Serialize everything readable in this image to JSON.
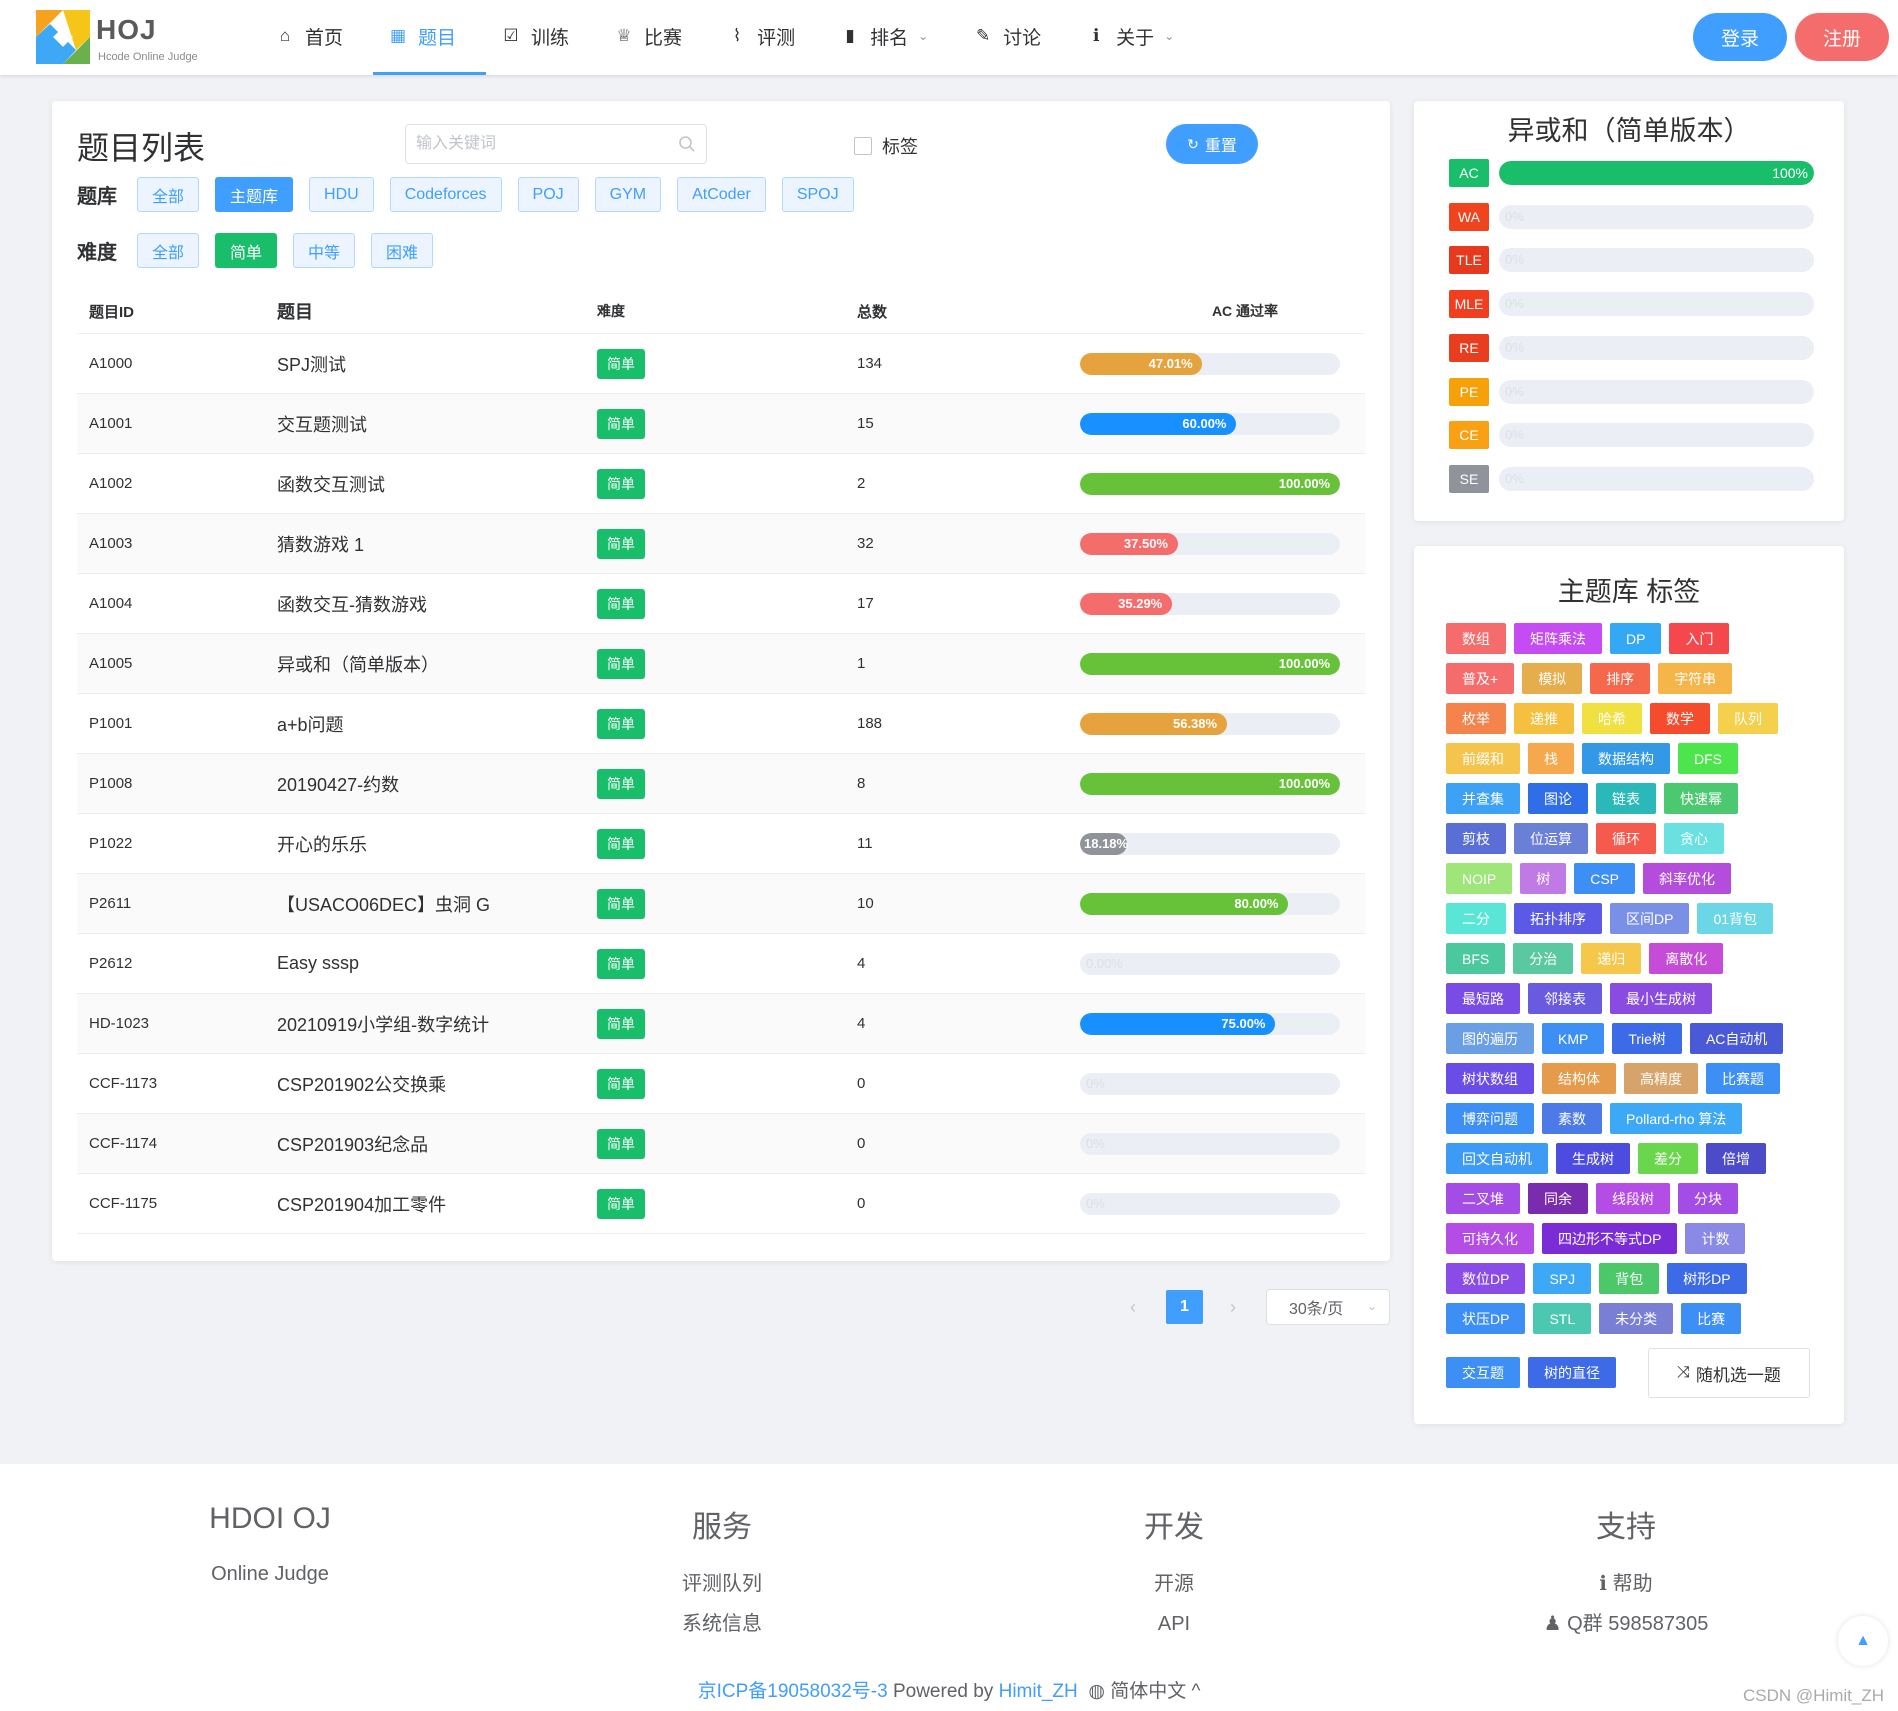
{
  "brand": {
    "name": "HOJ",
    "subtitle": "Hcode Online Judge"
  },
  "nav": [
    {
      "label": "首页",
      "icon": "home-icon",
      "glyph": "⌂",
      "active": false,
      "caret": false
    },
    {
      "label": "题目",
      "icon": "grid-icon",
      "glyph": "▦",
      "active": true,
      "caret": false
    },
    {
      "label": "训练",
      "icon": "clipboard-check-icon",
      "glyph": "☑",
      "active": false,
      "caret": false
    },
    {
      "label": "比赛",
      "icon": "trophy-icon",
      "glyph": "♕",
      "active": false,
      "caret": false
    },
    {
      "label": "评测",
      "icon": "chart-line-icon",
      "glyph": "⌇",
      "active": false,
      "caret": false
    },
    {
      "label": "排名",
      "icon": "bar-chart-icon",
      "glyph": "▮",
      "active": false,
      "caret": true
    },
    {
      "label": "讨论",
      "icon": "chat-icon",
      "glyph": "✎",
      "active": false,
      "caret": false
    },
    {
      "label": "关于",
      "icon": "info-icon",
      "glyph": "ℹ",
      "active": false,
      "caret": true
    }
  ],
  "auth": {
    "login": "登录",
    "register": "注册"
  },
  "problem_list": {
    "title": "题目列表",
    "search_placeholder": "输入关键词",
    "tag_checkbox": "标签",
    "reset": "重置",
    "bank_label": "题库",
    "banks": [
      {
        "label": "全部",
        "selected": false
      },
      {
        "label": "主题库",
        "selected": true
      },
      {
        "label": "HDU",
        "selected": false
      },
      {
        "label": "Codeforces",
        "selected": false
      },
      {
        "label": "POJ",
        "selected": false
      },
      {
        "label": "GYM",
        "selected": false
      },
      {
        "label": "AtCoder",
        "selected": false
      },
      {
        "label": "SPOJ",
        "selected": false
      }
    ],
    "difficulty_label": "难度",
    "difficulties": [
      {
        "label": "全部",
        "selected": false
      },
      {
        "label": "简单",
        "selected": true
      },
      {
        "label": "中等",
        "selected": false
      },
      {
        "label": "困难",
        "selected": false
      }
    ],
    "columns": [
      "题目ID",
      "题目",
      "难度",
      "总数",
      "AC 通过率"
    ],
    "rows": [
      {
        "id": "A1000",
        "title": "SPJ测试",
        "difficulty": "简单",
        "total": "134",
        "rate": 47.01,
        "rate_text": "47.01%",
        "color": "#e6a23c"
      },
      {
        "id": "A1001",
        "title": "交互题测试",
        "difficulty": "简单",
        "total": "15",
        "rate": 60.0,
        "rate_text": "60.00%",
        "color": "#1890ff"
      },
      {
        "id": "A1002",
        "title": "函数交互测试",
        "difficulty": "简单",
        "total": "2",
        "rate": 100.0,
        "rate_text": "100.00%",
        "color": "#67c23a"
      },
      {
        "id": "A1003",
        "title": "猜数游戏 1",
        "difficulty": "简单",
        "total": "32",
        "rate": 37.5,
        "rate_text": "37.50%",
        "color": "#f56c6c"
      },
      {
        "id": "A1004",
        "title": "函数交互-猜数游戏",
        "difficulty": "简单",
        "total": "17",
        "rate": 35.29,
        "rate_text": "35.29%",
        "color": "#f56c6c"
      },
      {
        "id": "A1005",
        "title": "异或和（简单版本）",
        "difficulty": "简单",
        "total": "1",
        "rate": 100.0,
        "rate_text": "100.00%",
        "color": "#67c23a"
      },
      {
        "id": "P1001",
        "title": "a+b问题",
        "difficulty": "简单",
        "total": "188",
        "rate": 56.38,
        "rate_text": "56.38%",
        "color": "#e6a23c"
      },
      {
        "id": "P1008",
        "title": "20190427-约数",
        "difficulty": "简单",
        "total": "8",
        "rate": 100.0,
        "rate_text": "100.00%",
        "color": "#67c23a"
      },
      {
        "id": "P1022",
        "title": "开心的乐乐",
        "difficulty": "简单",
        "total": "11",
        "rate": 18.18,
        "rate_text": "18.18%",
        "color": "#909399"
      },
      {
        "id": "P2611",
        "title": "【USACO06DEC】虫洞 G",
        "difficulty": "简单",
        "total": "10",
        "rate": 80.0,
        "rate_text": "80.00%",
        "color": "#67c23a"
      },
      {
        "id": "P2612",
        "title": "Easy sssp",
        "difficulty": "简单",
        "total": "4",
        "rate": 0,
        "rate_text": "0.00%",
        "color": "#ebeef5"
      },
      {
        "id": "HD-1023",
        "title": "20210919小学组-数字统计",
        "difficulty": "简单",
        "total": "4",
        "rate": 75.0,
        "rate_text": "75.00%",
        "color": "#1890ff"
      },
      {
        "id": "CCF-1173",
        "title": "CSP201902公交换乘",
        "difficulty": "简单",
        "total": "0",
        "rate": 0,
        "rate_text": "0%",
        "color": "#ebeef5"
      },
      {
        "id": "CCF-1174",
        "title": "CSP201903纪念品",
        "difficulty": "简单",
        "total": "0",
        "rate": 0,
        "rate_text": "0%",
        "color": "#ebeef5"
      },
      {
        "id": "CCF-1175",
        "title": "CSP201904加工零件",
        "difficulty": "简单",
        "total": "0",
        "rate": 0,
        "rate_text": "0%",
        "color": "#ebeef5"
      }
    ]
  },
  "pagination": {
    "prev": "‹",
    "next": "›",
    "current": "1",
    "page_size": "30条/页"
  },
  "status_panel": {
    "title": "异或和（简单版本）",
    "items": [
      {
        "code": "AC",
        "color": "#19be6b",
        "percent": 100,
        "text": "100%"
      },
      {
        "code": "WA",
        "color": "#f0441e",
        "percent": 0,
        "text": "0%"
      },
      {
        "code": "TLE",
        "color": "#e6391e",
        "percent": 0,
        "text": "0%"
      },
      {
        "code": "MLE",
        "color": "#f03e1e",
        "percent": 0,
        "text": "0%"
      },
      {
        "code": "RE",
        "color": "#e83d1f",
        "percent": 0,
        "text": "0%"
      },
      {
        "code": "PE",
        "color": "#f7a10a",
        "percent": 0,
        "text": "0%"
      },
      {
        "code": "CE",
        "color": "#f9a013",
        "percent": 0,
        "text": "0%"
      },
      {
        "code": "SE",
        "color": "#909399",
        "percent": 0,
        "text": "0%"
      }
    ]
  },
  "tag_panel": {
    "title": "主题库 标签",
    "rows": [
      [
        {
          "t": "数组",
          "c": "#f56c6c"
        },
        {
          "t": "矩阵乘法",
          "c": "#c44cf2"
        },
        {
          "t": "DP",
          "c": "#33a8f5"
        },
        {
          "t": "入门",
          "c": "#f5484d"
        }
      ],
      [
        {
          "t": "普及+",
          "c": "#f56c6c"
        },
        {
          "t": "模拟",
          "c": "#e6ad4c"
        },
        {
          "t": "排序",
          "c": "#f5684c"
        },
        {
          "t": "字符串",
          "c": "#f5b548"
        }
      ],
      [
        {
          "t": "枚举",
          "c": "#f5844c"
        },
        {
          "t": "递推",
          "c": "#f5c040"
        },
        {
          "t": "哈希",
          "c": "#f0e040"
        },
        {
          "t": "数学",
          "c": "#f54c2e"
        },
        {
          "t": "队列",
          "c": "#f5d04c"
        }
      ],
      [
        {
          "t": "前缀和",
          "c": "#f5c44c"
        },
        {
          "t": "栈",
          "c": "#f5a84c"
        },
        {
          "t": "数据结构",
          "c": "#3399e6"
        },
        {
          "t": "DFS",
          "c": "#4ce64c"
        }
      ],
      [
        {
          "t": "并查集",
          "c": "#3da2f5"
        },
        {
          "t": "图论",
          "c": "#2f6ee6"
        },
        {
          "t": "链表",
          "c": "#2bb8b8"
        },
        {
          "t": "快速幂",
          "c": "#4cc870"
        }
      ],
      [
        {
          "t": "剪枝",
          "c": "#5a6fd6"
        },
        {
          "t": "位运算",
          "c": "#6a7fd6"
        },
        {
          "t": "循环",
          "c": "#f55a4c"
        },
        {
          "t": "贪心",
          "c": "#6ae0e0"
        }
      ],
      [
        {
          "t": "NOIP",
          "c": "#9ee67a"
        },
        {
          "t": "树",
          "c": "#c07ae6"
        },
        {
          "t": "CSP",
          "c": "#3d8ff5"
        },
        {
          "t": "斜率优化",
          "c": "#b44cdc"
        }
      ],
      [
        {
          "t": "二分",
          "c": "#5ae6d6"
        },
        {
          "t": "拓扑排序",
          "c": "#5a5ae6"
        },
        {
          "t": "区间DP",
          "c": "#7a8fe6"
        },
        {
          "t": "01背包",
          "c": "#6ad6e6"
        }
      ],
      [
        {
          "t": "BFS",
          "c": "#4cc89e"
        },
        {
          "t": "分治",
          "c": "#5ac8a0"
        },
        {
          "t": "递归",
          "c": "#f5c84c"
        },
        {
          "t": "离散化",
          "c": "#c44cd6"
        }
      ],
      [
        {
          "t": "最短路",
          "c": "#7a4ce6"
        },
        {
          "t": "邻接表",
          "c": "#6a5ae0"
        },
        {
          "t": "最小生成树",
          "c": "#8a4ce0"
        }
      ],
      [
        {
          "t": "图的遍历",
          "c": "#6a9fe6"
        },
        {
          "t": "KMP",
          "c": "#3d8ff5"
        },
        {
          "t": "Trie树",
          "c": "#3d6ae6"
        },
        {
          "t": "AC自动机",
          "c": "#4a5ad6"
        }
      ],
      [
        {
          "t": "树状数组",
          "c": "#6a4ce6"
        },
        {
          "t": "结构体",
          "c": "#e69a4c"
        },
        {
          "t": "高精度",
          "c": "#d6a46a"
        },
        {
          "t": "比赛题",
          "c": "#3d8ff5"
        }
      ],
      [
        {
          "t": "博弈问题",
          "c": "#3d8ff5"
        },
        {
          "t": "素数",
          "c": "#4c7ae6"
        },
        {
          "t": "Pollard-rho 算法",
          "c": "#3da8f5"
        }
      ],
      [
        {
          "t": "回文自动机",
          "c": "#3d9af5"
        },
        {
          "t": "生成树",
          "c": "#4c4ce0"
        },
        {
          "t": "差分",
          "c": "#6ad64c"
        },
        {
          "t": "倍增",
          "c": "#4c4cc8"
        }
      ],
      [
        {
          "t": "二叉堆",
          "c": "#a44ce6"
        },
        {
          "t": "同余",
          "c": "#7a2cb0"
        },
        {
          "t": "线段树",
          "c": "#b44ce6"
        },
        {
          "t": "分块",
          "c": "#a44ce6"
        }
      ],
      [
        {
          "t": "可持久化",
          "c": "#b44ce6"
        },
        {
          "t": "四边形不等式DP",
          "c": "#7a2cd6"
        },
        {
          "t": "计数",
          "c": "#8a8ae6"
        }
      ],
      [
        {
          "t": "数位DP",
          "c": "#8a4ce6"
        },
        {
          "t": "SPJ",
          "c": "#3da8f5"
        },
        {
          "t": "背包",
          "c": "#4cc86a"
        },
        {
          "t": "树形DP",
          "c": "#3d6ae6"
        }
      ],
      [
        {
          "t": "状压DP",
          "c": "#3d8ff5"
        },
        {
          "t": "STL",
          "c": "#4cc8b0"
        },
        {
          "t": "未分类",
          "c": "#7a7fd6"
        },
        {
          "t": "比赛",
          "c": "#3d8ff5"
        }
      ],
      [
        {
          "t": "交互题",
          "c": "#3d8ff5"
        },
        {
          "t": "树的直径",
          "c": "#3d6ae6"
        }
      ]
    ],
    "random_button": "随机选一题"
  },
  "footer": {
    "col1": {
      "head": "HDOI OJ",
      "links": [
        "Online Judge"
      ]
    },
    "col2": {
      "head": "服务",
      "links": [
        "评测队列",
        "系统信息"
      ]
    },
    "col3": {
      "head": "开发",
      "links": [
        "开源",
        "API"
      ]
    },
    "col4": {
      "head": "支持",
      "links": [
        "帮助",
        "Q群 598587305"
      ]
    },
    "icp": "京ICP备19058032号-3",
    "powered": "Powered by",
    "author": "Himit_ZH",
    "lang": "简体中文",
    "watermark": "CSDN @Himit_ZH"
  }
}
